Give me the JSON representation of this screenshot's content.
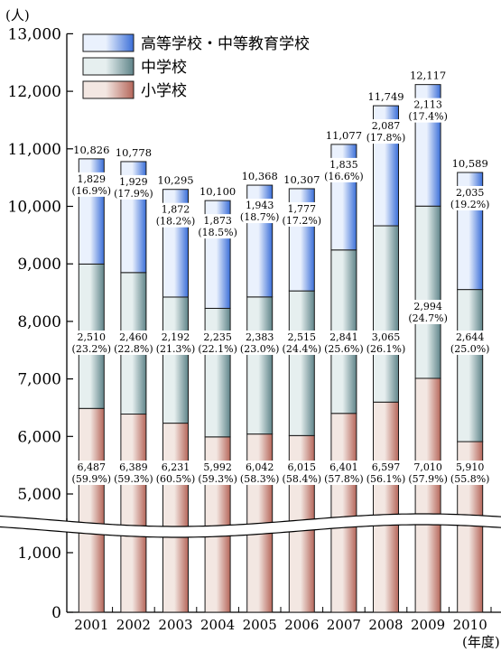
{
  "chart_data": {
    "type": "bar",
    "stacked": true,
    "y_unit": "(人)",
    "x_unit": "(年度)",
    "categories": [
      "2001",
      "2002",
      "2003",
      "2004",
      "2005",
      "2006",
      "2007",
      "2008",
      "2009",
      "2010"
    ],
    "series": [
      {
        "name": "小学校",
        "color": "#b5665a",
        "values": [
          6487,
          6389,
          6231,
          5992,
          6042,
          6015,
          6401,
          6597,
          7010,
          5910
        ],
        "pct": [
          "(59.9%)",
          "(59.3%)",
          "(60.5%)",
          "(59.3%)",
          "(58.3%)",
          "(58.4%)",
          "(57.8%)",
          "(56.1%)",
          "(57.9%)",
          "(55.8%)"
        ]
      },
      {
        "name": "中学校",
        "color": "#5f8489",
        "values": [
          2510,
          2460,
          2192,
          2235,
          2383,
          2515,
          2841,
          3065,
          2994,
          2644
        ],
        "pct": [
          "(23.2%)",
          "(22.8%)",
          "(21.3%)",
          "(22.1%)",
          "(23.0%)",
          "(24.4%)",
          "(25.6%)",
          "(26.1%)",
          "(24.7%)",
          "(25.0%)"
        ]
      },
      {
        "name": "高等学校・中等教育学校",
        "color": "#3a6ed8",
        "values": [
          1829,
          1929,
          1872,
          1873,
          1943,
          1777,
          1835,
          2087,
          2113,
          2035
        ],
        "pct": [
          "(16.9%)",
          "(17.9%)",
          "(18.2%)",
          "(18.5%)",
          "(18.7%)",
          "(17.2%)",
          "(16.6%)",
          "(17.8%)",
          "(17.4%)",
          "(19.2%)"
        ]
      }
    ],
    "totals": [
      10826,
      10778,
      10295,
      10100,
      10368,
      10307,
      11077,
      11749,
      12117,
      10589
    ],
    "y_ticks": [
      0,
      1000,
      5000,
      6000,
      7000,
      8000,
      9000,
      10000,
      11000,
      12000,
      13000
    ],
    "y_tick_labels": [
      "0",
      "1,000",
      "5,000",
      "6,000",
      "7,000",
      "8,000",
      "9,000",
      "10,000",
      "11,000",
      "12,000",
      "13,000"
    ],
    "axis_break": [
      1000,
      5000
    ],
    "legend_position": "top-left"
  }
}
